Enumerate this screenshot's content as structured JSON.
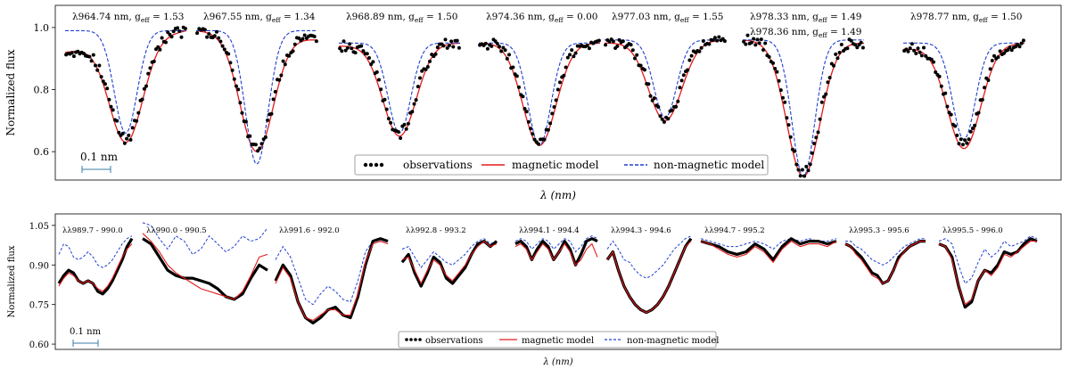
{
  "chart_data": [
    {
      "type": "line",
      "ylabel": "Normalized flux",
      "xlabel": "λ (nm)",
      "ylim": [
        0.52,
        1.06
      ],
      "yticks": [
        "0.6",
        "0.8",
        "1.0"
      ],
      "ytick_values": [
        0.6,
        0.8,
        1.0
      ],
      "scale_bar_label": "0.1 nm",
      "legend": {
        "position": "bottom-center",
        "entries": [
          "observations",
          "magnetic model",
          "non-magnetic model"
        ]
      },
      "series_styles": {
        "observations": {
          "color": "#000000",
          "style": "dots"
        },
        "magnetic": {
          "color": "#e31a1c",
          "style": "solid"
        },
        "nonmagnetic": {
          "color": "#1f3fd1",
          "style": "dashed"
        }
      },
      "panels": [
        {
          "label": "λ964.74 nm, g",
          "sub": "eff",
          "value": " = 1.53",
          "cont": 0.99,
          "depth": 0.63,
          "nonmag_depth": 0.66,
          "cont_left": 0.92,
          "cont_right": 0.99
        },
        {
          "label": "λ967.55 nm, g",
          "sub": "eff",
          "value": " = 1.34",
          "cont": 0.99,
          "depth": 0.6,
          "nonmag_depth": 0.56,
          "cont_left": 0.99,
          "cont_right": 0.96
        },
        {
          "label": "λ968.89 nm, g",
          "sub": "eff",
          "value": " = 1.50",
          "cont": 0.95,
          "depth": 0.65,
          "nonmag_depth": 0.66,
          "cont_left": 0.94,
          "cont_right": 0.95
        },
        {
          "label": "λ974.36 nm, g",
          "sub": "eff",
          "value": " = 0.00",
          "cont": 0.95,
          "depth": 0.62,
          "nonmag_depth": 0.62,
          "cont_left": 0.95,
          "cont_right": 0.95
        },
        {
          "label": "λ977.03 nm, g",
          "sub": "eff",
          "value": " = 1.55",
          "cont": 0.96,
          "depth": 0.7,
          "nonmag_depth": 0.71,
          "cont_left": 0.95,
          "cont_right": 0.96
        },
        {
          "label": "λ978.33 nm, g",
          "sub": "eff",
          "value": " = 1.49",
          "label2": "λ978.36 nm, g",
          "value2": " = 1.49",
          "cont": 0.96,
          "depth": 0.52,
          "nonmag_depth": 0.52,
          "cont_left": 0.96,
          "cont_right": 0.95
        },
        {
          "label": "λ978.77 nm, g",
          "sub": "eff",
          "value": " = 1.50",
          "cont": 0.95,
          "depth": 0.61,
          "nonmag_depth": 0.64,
          "cont_left": 0.93,
          "cont_right": 0.95
        }
      ]
    },
    {
      "type": "line",
      "ylabel": "Normalized flux",
      "xlabel": "λ (nm)",
      "ylim": [
        0.58,
        1.08
      ],
      "yticks": [
        "0.60",
        "0.75",
        "0.90",
        "1.05"
      ],
      "ytick_values": [
        0.6,
        0.75,
        0.9,
        1.05
      ],
      "scale_bar_label": "0.1 nm",
      "legend": {
        "position": "bottom-center",
        "entries": [
          "observations",
          "magnetic model",
          "non-magnetic model"
        ]
      },
      "panels": [
        {
          "label": "λλ989.7 - 990.0",
          "obs": [
            0.83,
            0.86,
            0.88,
            0.87,
            0.84,
            0.83,
            0.84,
            0.83,
            0.8,
            0.79,
            0.81,
            0.84,
            0.88,
            0.92,
            0.97,
            1.0
          ],
          "mag": [
            0.82,
            0.85,
            0.87,
            0.86,
            0.84,
            0.83,
            0.84,
            0.83,
            0.81,
            0.8,
            0.82,
            0.85,
            0.89,
            0.93,
            0.96,
            0.98
          ],
          "nonmag": [
            0.94,
            0.98,
            0.97,
            0.93,
            0.92,
            0.93,
            0.95,
            0.93,
            0.9,
            0.89,
            0.9,
            0.92,
            0.95,
            0.98,
            1.0,
            1.01
          ]
        },
        {
          "label": "λλ990.0 - 990.5",
          "obs": [
            1.0,
            0.98,
            0.93,
            0.88,
            0.86,
            0.85,
            0.85,
            0.84,
            0.83,
            0.81,
            0.78,
            0.77,
            0.79,
            0.85,
            0.9,
            0.88
          ],
          "mag": [
            1.02,
            0.99,
            0.95,
            0.9,
            0.87,
            0.85,
            0.83,
            0.81,
            0.8,
            0.79,
            0.78,
            0.77,
            0.8,
            0.86,
            0.93,
            0.94
          ],
          "nonmag": [
            1.06,
            1.05,
            1.0,
            0.96,
            1.01,
            0.99,
            0.94,
            0.96,
            1.01,
            0.98,
            0.95,
            0.97,
            1.01,
            0.99,
            1.0,
            1.04
          ]
        },
        {
          "label": "λλ991.6 - 992.0",
          "obs": [
            0.84,
            0.9,
            0.86,
            0.76,
            0.7,
            0.68,
            0.7,
            0.73,
            0.74,
            0.71,
            0.7,
            0.78,
            0.9,
            0.99,
            1.0,
            0.99
          ],
          "mag": [
            0.83,
            0.89,
            0.85,
            0.76,
            0.7,
            0.69,
            0.71,
            0.73,
            0.73,
            0.71,
            0.71,
            0.79,
            0.91,
            0.98,
            0.99,
            0.98
          ],
          "nonmag": [
            0.92,
            0.97,
            0.93,
            0.85,
            0.77,
            0.75,
            0.79,
            0.82,
            0.8,
            0.77,
            0.76,
            0.84,
            0.95,
            0.99,
            0.99,
            0.98
          ]
        },
        {
          "label": "λλ992.8 - 993.2",
          "obs": [
            0.91,
            0.94,
            0.87,
            0.82,
            0.87,
            0.93,
            0.91,
            0.85,
            0.83,
            0.86,
            0.89,
            0.94,
            0.98,
            0.99,
            0.97,
            0.99
          ],
          "mag": [
            0.92,
            0.93,
            0.88,
            0.83,
            0.88,
            0.92,
            0.9,
            0.86,
            0.84,
            0.87,
            0.9,
            0.94,
            0.97,
            0.99,
            0.97,
            0.98
          ],
          "nonmag": [
            0.96,
            0.97,
            0.93,
            0.89,
            0.92,
            0.95,
            0.93,
            0.91,
            0.9,
            0.92,
            0.94,
            0.97,
            0.99,
            1.0,
            0.98,
            0.99
          ]
        },
        {
          "label": "λλ994.1 - 994.4",
          "obs": [
            0.98,
            0.99,
            0.97,
            0.92,
            0.96,
            0.99,
            0.97,
            0.92,
            0.95,
            0.99,
            0.96,
            0.9,
            0.94,
            0.99,
            1.0,
            0.99
          ],
          "mag": [
            0.97,
            0.98,
            0.96,
            0.92,
            0.95,
            0.98,
            0.96,
            0.92,
            0.95,
            0.98,
            0.95,
            0.9,
            0.92,
            0.96,
            0.98,
            0.93
          ],
          "nonmag": [
            0.99,
            1.0,
            0.99,
            0.96,
            0.98,
            1.0,
            0.99,
            0.96,
            0.98,
            1.0,
            0.99,
            0.95,
            0.97,
            1.0,
            1.01,
            1.0
          ]
        },
        {
          "label": "λλ994.3 - 994.6",
          "obs": [
            0.92,
            0.95,
            0.88,
            0.82,
            0.78,
            0.75,
            0.73,
            0.72,
            0.73,
            0.75,
            0.78,
            0.82,
            0.87,
            0.92,
            0.97,
            1.0
          ],
          "mag": [
            0.92,
            0.95,
            0.88,
            0.82,
            0.78,
            0.75,
            0.73,
            0.72,
            0.73,
            0.75,
            0.78,
            0.82,
            0.87,
            0.92,
            0.97,
            0.99
          ],
          "nonmag": [
            0.96,
            0.99,
            0.96,
            0.92,
            0.91,
            0.88,
            0.86,
            0.85,
            0.86,
            0.88,
            0.9,
            0.93,
            0.96,
            0.98,
            1.0,
            1.01
          ]
        },
        {
          "label": "λλ994.7 - 995.2",
          "obs": [
            0.99,
            0.98,
            0.97,
            0.95,
            0.94,
            0.95,
            0.98,
            0.96,
            0.92,
            0.97,
            1.0,
            0.98,
            0.99,
            0.99,
            0.98,
            0.99
          ],
          "mag": [
            0.99,
            0.98,
            0.96,
            0.94,
            0.93,
            0.94,
            0.97,
            0.95,
            0.91,
            0.96,
            0.99,
            0.97,
            0.98,
            0.98,
            0.97,
            0.99
          ],
          "nonmag": [
            1.0,
            0.99,
            0.98,
            0.97,
            0.97,
            0.98,
            0.99,
            0.98,
            0.96,
            0.99,
            1.0,
            0.99,
            1.0,
            0.99,
            0.99,
            1.0
          ]
        },
        {
          "label": "λλ995.3 - 995.6",
          "obs": [
            0.98,
            0.97,
            0.95,
            0.93,
            0.9,
            0.87,
            0.86,
            0.83,
            0.84,
            0.88,
            0.93,
            0.95,
            0.97,
            0.98,
            0.99,
            0.99
          ],
          "mag": [
            0.98,
            0.97,
            0.94,
            0.92,
            0.89,
            0.86,
            0.85,
            0.83,
            0.84,
            0.88,
            0.92,
            0.95,
            0.97,
            0.98,
            0.99,
            0.99
          ],
          "nonmag": [
            0.99,
            0.99,
            0.97,
            0.96,
            0.94,
            0.92,
            0.91,
            0.9,
            0.91,
            0.93,
            0.95,
            0.97,
            0.98,
            0.99,
            1.0,
            1.0
          ]
        },
        {
          "label": "λλ995.5 - 996.0",
          "obs": [
            0.98,
            0.97,
            0.93,
            0.82,
            0.74,
            0.76,
            0.84,
            0.88,
            0.87,
            0.9,
            0.95,
            0.94,
            0.95,
            0.98,
            1.0,
            0.99
          ],
          "mag": [
            0.98,
            0.97,
            0.92,
            0.82,
            0.75,
            0.77,
            0.84,
            0.88,
            0.86,
            0.89,
            0.94,
            0.93,
            0.95,
            0.97,
            0.99,
            0.99
          ],
          "nonmag": [
            0.99,
            1.0,
            0.98,
            0.9,
            0.83,
            0.85,
            0.91,
            0.96,
            0.93,
            0.95,
            0.99,
            0.97,
            0.98,
            0.99,
            1.01,
            1.0
          ]
        }
      ]
    }
  ]
}
